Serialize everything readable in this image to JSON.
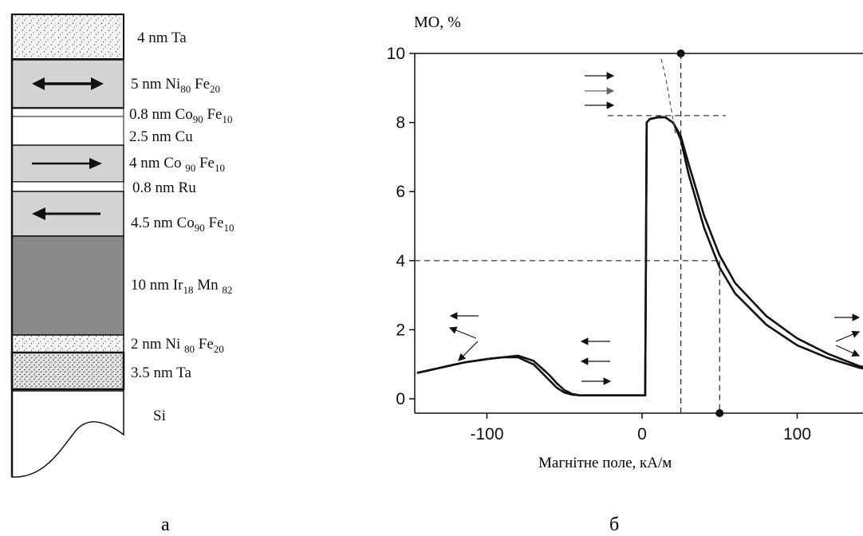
{
  "stack": {
    "layers": [
      {
        "label": "4 nm Ta"
      },
      {
        "label": "5 nm Ni",
        "s1": "80",
        "mid": " Fe",
        "s2": "20"
      },
      {
        "label": "0.8 nm Co",
        "s1": "90",
        "mid": " Fe",
        "s2": "10"
      },
      {
        "label": "2.5 nm Cu"
      },
      {
        "label": "4 nm Co ",
        "s1": "90",
        "mid": " Fe",
        "s2": "10"
      },
      {
        "label": "0.8 nm Ru"
      },
      {
        "label": "4.5 nm Co",
        "s1": "90",
        "mid": " Fe",
        "s2": "10"
      },
      {
        "label": "10 nm Ir",
        "s1": "18",
        "mid": " Mn ",
        "s2": "82"
      },
      {
        "label": "2 nm Ni ",
        "s1": "80",
        "mid": " Fe",
        "s2": "20"
      },
      {
        "label": "3.5 nm Ta"
      },
      {
        "label": "Si"
      }
    ],
    "caption": "а"
  },
  "plot": {
    "ylabel": "МО, %",
    "xlabel": "Магнітне поле, кА/м",
    "caption": "б",
    "xticks": [
      "-100",
      "0",
      "100"
    ],
    "yticks": [
      "0",
      "2",
      "4",
      "6",
      "8",
      "10"
    ]
  },
  "chart_data": {
    "type": "line",
    "xlabel": "Магнітне поле, кА/м",
    "ylabel": "МО, %",
    "xlim": [
      -145,
      150
    ],
    "ylim": [
      -0.4,
      10
    ],
    "series": [
      {
        "x": [
          -145,
          -130,
          -115,
          -100,
          -90,
          -80,
          -70,
          -60,
          -55,
          -50,
          -45,
          -40,
          -20,
          0,
          2,
          3,
          5,
          10,
          15,
          20,
          25,
          30,
          40,
          50,
          60,
          80,
          100,
          120,
          140,
          150
        ],
        "y": [
          0.75,
          0.9,
          1.05,
          1.15,
          1.2,
          1.25,
          1.1,
          0.7,
          0.45,
          0.25,
          0.14,
          0.1,
          0.1,
          0.1,
          0.1,
          8.0,
          8.1,
          8.15,
          8.15,
          8.0,
          7.6,
          6.8,
          5.3,
          4.15,
          3.35,
          2.4,
          1.75,
          1.3,
          0.95,
          0.85
        ]
      },
      {
        "x": [
          -145,
          -130,
          -115,
          -100,
          -90,
          -80,
          -70,
          -60,
          -55,
          -50,
          -45,
          -40,
          -20,
          0,
          2,
          3,
          5,
          10,
          15,
          20,
          25,
          30,
          40,
          50,
          60,
          80,
          100,
          120,
          140,
          150
        ],
        "y": [
          0.75,
          0.9,
          1.05,
          1.15,
          1.2,
          1.2,
          1.0,
          0.55,
          0.32,
          0.18,
          0.12,
          0.1,
          0.1,
          0.1,
          0.1,
          8.0,
          8.1,
          8.15,
          8.15,
          8.0,
          7.5,
          6.5,
          4.95,
          3.8,
          3.05,
          2.15,
          1.55,
          1.18,
          0.9,
          0.82
        ]
      }
    ],
    "guides": {
      "x_at_y8": 25,
      "x_at_y4": 50
    },
    "grid": false
  }
}
